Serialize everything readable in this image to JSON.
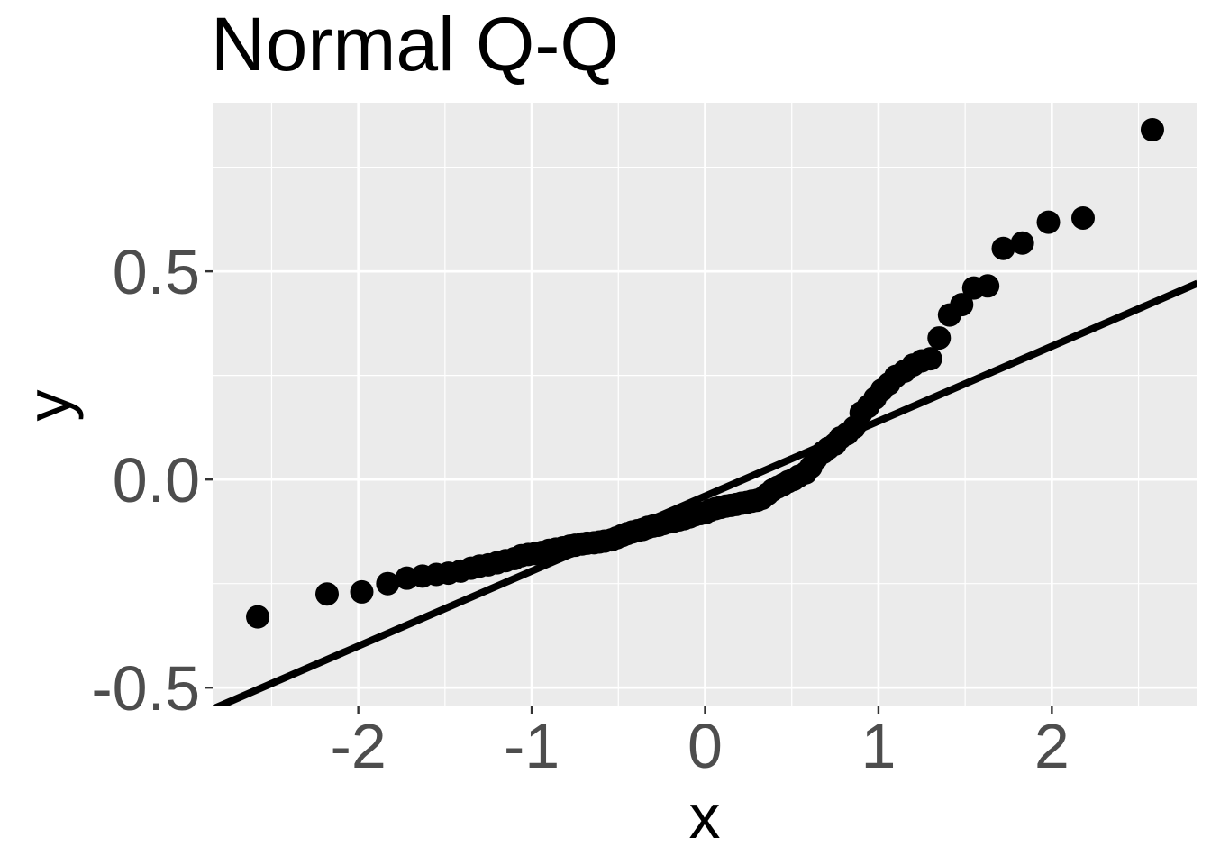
{
  "chart_data": {
    "type": "scatter",
    "title": "Normal Q-Q",
    "xlabel": "x",
    "ylabel": "y",
    "xlim": [
      -2.84,
      2.84
    ],
    "ylim": [
      -0.545,
      0.905
    ],
    "x_ticks": [
      -2,
      -1,
      0,
      1,
      2
    ],
    "x_tick_labels": [
      "-2",
      "-1",
      "0",
      "1",
      "2"
    ],
    "y_ticks": [
      -0.5,
      0.0,
      0.5
    ],
    "y_tick_labels": [
      "-0.5",
      "0.0",
      "0.5"
    ],
    "grid": true,
    "background": "#ebebeb",
    "grid_color": "#ffffff",
    "point_color": "#000000",
    "reference_line": {
      "slope": 0.18,
      "intercept": -0.04,
      "color": "#000000"
    },
    "series": [
      {
        "values": [
          [
            -2.58,
            -0.33
          ],
          [
            -2.18,
            -0.275
          ],
          [
            -1.98,
            -0.27
          ],
          [
            -1.83,
            -0.25
          ],
          [
            -1.72,
            -0.237
          ],
          [
            -1.63,
            -0.232
          ],
          [
            -1.55,
            -0.228
          ],
          [
            -1.48,
            -0.225
          ],
          [
            -1.41,
            -0.22
          ],
          [
            -1.35,
            -0.213
          ],
          [
            -1.3,
            -0.208
          ],
          [
            -1.25,
            -0.205
          ],
          [
            -1.2,
            -0.2
          ],
          [
            -1.15,
            -0.195
          ],
          [
            -1.1,
            -0.19
          ],
          [
            -1.06,
            -0.183
          ],
          [
            -1.02,
            -0.18
          ],
          [
            -0.98,
            -0.178
          ],
          [
            -0.94,
            -0.175
          ],
          [
            -0.9,
            -0.17
          ],
          [
            -0.86,
            -0.167
          ],
          [
            -0.82,
            -0.164
          ],
          [
            -0.78,
            -0.16
          ],
          [
            -0.75,
            -0.158
          ],
          [
            -0.71,
            -0.155
          ],
          [
            -0.68,
            -0.153
          ],
          [
            -0.64,
            -0.152
          ],
          [
            -0.61,
            -0.15
          ],
          [
            -0.58,
            -0.148
          ],
          [
            -0.54,
            -0.145
          ],
          [
            -0.51,
            -0.14
          ],
          [
            -0.48,
            -0.135
          ],
          [
            -0.45,
            -0.13
          ],
          [
            -0.42,
            -0.126
          ],
          [
            -0.39,
            -0.123
          ],
          [
            -0.36,
            -0.12
          ],
          [
            -0.33,
            -0.115
          ],
          [
            -0.3,
            -0.112
          ],
          [
            -0.27,
            -0.11
          ],
          [
            -0.24,
            -0.106
          ],
          [
            -0.21,
            -0.102
          ],
          [
            -0.18,
            -0.1
          ],
          [
            -0.15,
            -0.097
          ],
          [
            -0.12,
            -0.094
          ],
          [
            -0.09,
            -0.09
          ],
          [
            -0.06,
            -0.085
          ],
          [
            -0.03,
            -0.082
          ],
          [
            0.0,
            -0.08
          ],
          [
            0.03,
            -0.074
          ],
          [
            0.06,
            -0.07
          ],
          [
            0.09,
            -0.067
          ],
          [
            0.12,
            -0.064
          ],
          [
            0.15,
            -0.062
          ],
          [
            0.18,
            -0.06
          ],
          [
            0.21,
            -0.057
          ],
          [
            0.24,
            -0.055
          ],
          [
            0.27,
            -0.052
          ],
          [
            0.3,
            -0.05
          ],
          [
            0.33,
            -0.045
          ],
          [
            0.36,
            -0.035
          ],
          [
            0.39,
            -0.025
          ],
          [
            0.42,
            -0.018
          ],
          [
            0.45,
            -0.012
          ],
          [
            0.48,
            -0.005
          ],
          [
            0.51,
            0.0
          ],
          [
            0.54,
            0.008
          ],
          [
            0.58,
            0.016
          ],
          [
            0.61,
            0.03
          ],
          [
            0.64,
            0.05
          ],
          [
            0.68,
            0.065
          ],
          [
            0.71,
            0.075
          ],
          [
            0.75,
            0.085
          ],
          [
            0.78,
            0.1
          ],
          [
            0.82,
            0.11
          ],
          [
            0.86,
            0.125
          ],
          [
            0.9,
            0.16
          ],
          [
            0.94,
            0.175
          ],
          [
            0.98,
            0.195
          ],
          [
            1.02,
            0.215
          ],
          [
            1.06,
            0.23
          ],
          [
            1.1,
            0.248
          ],
          [
            1.15,
            0.26
          ],
          [
            1.2,
            0.275
          ],
          [
            1.25,
            0.285
          ],
          [
            1.3,
            0.29
          ],
          [
            1.35,
            0.34
          ],
          [
            1.41,
            0.395
          ],
          [
            1.48,
            0.42
          ],
          [
            1.55,
            0.46
          ],
          [
            1.63,
            0.465
          ],
          [
            1.72,
            0.555
          ],
          [
            1.83,
            0.568
          ],
          [
            1.98,
            0.618
          ],
          [
            2.18,
            0.628
          ],
          [
            2.58,
            0.84
          ]
        ]
      }
    ]
  }
}
